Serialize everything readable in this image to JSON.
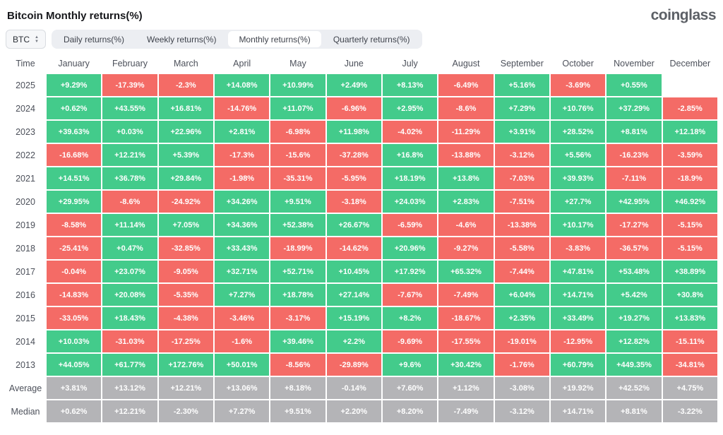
{
  "header": {
    "title": "Bitcoin Monthly returns(%)",
    "logo": "coinglass"
  },
  "controls": {
    "coin_selector": "BTC",
    "tabs": [
      {
        "label": "Daily returns(%)",
        "active": false
      },
      {
        "label": "Weekly returns(%)",
        "active": false
      },
      {
        "label": "Monthly returns(%)",
        "active": true
      },
      {
        "label": "Quarterly returns(%)",
        "active": false
      }
    ]
  },
  "colors": {
    "positive": "#43cb8b",
    "negative": "#f46b66",
    "summary": "#b4b4b7"
  },
  "table": {
    "columns": [
      "Time",
      "January",
      "February",
      "March",
      "April",
      "May",
      "June",
      "July",
      "August",
      "September",
      "October",
      "November",
      "December"
    ],
    "rows": [
      {
        "label": "2025",
        "type": "year",
        "values": [
          "+9.29%",
          "-17.39%",
          "-2.3%",
          "+14.08%",
          "+10.99%",
          "+2.49%",
          "+8.13%",
          "-6.49%",
          "+5.16%",
          "-3.69%",
          "+0.55%",
          ""
        ]
      },
      {
        "label": "2024",
        "type": "year",
        "values": [
          "+0.62%",
          "+43.55%",
          "+16.81%",
          "-14.76%",
          "+11.07%",
          "-6.96%",
          "+2.95%",
          "-8.6%",
          "+7.29%",
          "+10.76%",
          "+37.29%",
          "-2.85%"
        ]
      },
      {
        "label": "2023",
        "type": "year",
        "values": [
          "+39.63%",
          "+0.03%",
          "+22.96%",
          "+2.81%",
          "-6.98%",
          "+11.98%",
          "-4.02%",
          "-11.29%",
          "+3.91%",
          "+28.52%",
          "+8.81%",
          "+12.18%"
        ]
      },
      {
        "label": "2022",
        "type": "year",
        "values": [
          "-16.68%",
          "+12.21%",
          "+5.39%",
          "-17.3%",
          "-15.6%",
          "-37.28%",
          "+16.8%",
          "-13.88%",
          "-3.12%",
          "+5.56%",
          "-16.23%",
          "-3.59%"
        ]
      },
      {
        "label": "2021",
        "type": "year",
        "values": [
          "+14.51%",
          "+36.78%",
          "+29.84%",
          "-1.98%",
          "-35.31%",
          "-5.95%",
          "+18.19%",
          "+13.8%",
          "-7.03%",
          "+39.93%",
          "-7.11%",
          "-18.9%"
        ]
      },
      {
        "label": "2020",
        "type": "year",
        "values": [
          "+29.95%",
          "-8.6%",
          "-24.92%",
          "+34.26%",
          "+9.51%",
          "-3.18%",
          "+24.03%",
          "+2.83%",
          "-7.51%",
          "+27.7%",
          "+42.95%",
          "+46.92%"
        ]
      },
      {
        "label": "2019",
        "type": "year",
        "values": [
          "-8.58%",
          "+11.14%",
          "+7.05%",
          "+34.36%",
          "+52.38%",
          "+26.67%",
          "-6.59%",
          "-4.6%",
          "-13.38%",
          "+10.17%",
          "-17.27%",
          "-5.15%"
        ]
      },
      {
        "label": "2018",
        "type": "year",
        "values": [
          "-25.41%",
          "+0.47%",
          "-32.85%",
          "+33.43%",
          "-18.99%",
          "-14.62%",
          "+20.96%",
          "-9.27%",
          "-5.58%",
          "-3.83%",
          "-36.57%",
          "-5.15%"
        ]
      },
      {
        "label": "2017",
        "type": "year",
        "values": [
          "-0.04%",
          "+23.07%",
          "-9.05%",
          "+32.71%",
          "+52.71%",
          "+10.45%",
          "+17.92%",
          "+65.32%",
          "-7.44%",
          "+47.81%",
          "+53.48%",
          "+38.89%"
        ]
      },
      {
        "label": "2016",
        "type": "year",
        "values": [
          "-14.83%",
          "+20.08%",
          "-5.35%",
          "+7.27%",
          "+18.78%",
          "+27.14%",
          "-7.67%",
          "-7.49%",
          "+6.04%",
          "+14.71%",
          "+5.42%",
          "+30.8%"
        ]
      },
      {
        "label": "2015",
        "type": "year",
        "values": [
          "-33.05%",
          "+18.43%",
          "-4.38%",
          "-3.46%",
          "-3.17%",
          "+15.19%",
          "+8.2%",
          "-18.67%",
          "+2.35%",
          "+33.49%",
          "+19.27%",
          "+13.83%"
        ]
      },
      {
        "label": "2014",
        "type": "year",
        "values": [
          "+10.03%",
          "-31.03%",
          "-17.25%",
          "-1.6%",
          "+39.46%",
          "+2.2%",
          "-9.69%",
          "-17.55%",
          "-19.01%",
          "-12.95%",
          "+12.82%",
          "-15.11%"
        ]
      },
      {
        "label": "2013",
        "type": "year",
        "values": [
          "+44.05%",
          "+61.77%",
          "+172.76%",
          "+50.01%",
          "-8.56%",
          "-29.89%",
          "+9.6%",
          "+30.42%",
          "-1.76%",
          "+60.79%",
          "+449.35%",
          "-34.81%"
        ]
      },
      {
        "label": "Average",
        "type": "summary",
        "values": [
          "+3.81%",
          "+13.12%",
          "+12.21%",
          "+13.06%",
          "+8.18%",
          "-0.14%",
          "+7.60%",
          "+1.12%",
          "-3.08%",
          "+19.92%",
          "+42.52%",
          "+4.75%"
        ]
      },
      {
        "label": "Median",
        "type": "summary",
        "values": [
          "+0.62%",
          "+12.21%",
          "-2.30%",
          "+7.27%",
          "+9.51%",
          "+2.20%",
          "+8.20%",
          "-7.49%",
          "-3.12%",
          "+14.71%",
          "+8.81%",
          "-3.22%"
        ]
      }
    ]
  }
}
